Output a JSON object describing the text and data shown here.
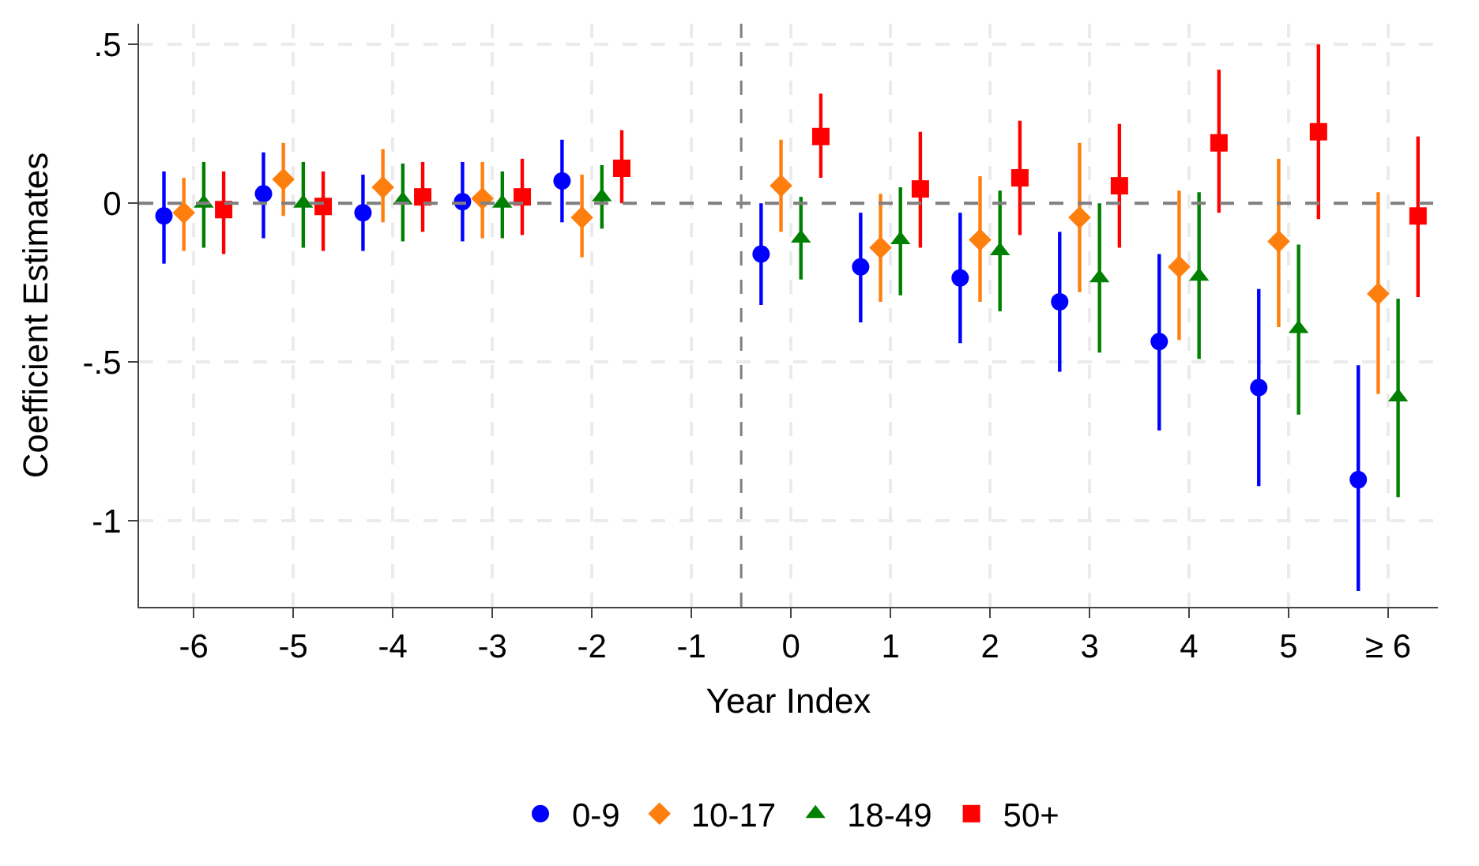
{
  "chart_data": {
    "type": "scatter",
    "xlabel": "Year Index",
    "ylabel": "Coefficient Estimates",
    "xlim": [
      -6.55,
      6.5
    ],
    "ylim": [
      -1.27,
      0.565
    ],
    "xticks": [
      -6,
      -5,
      -4,
      -3,
      -2,
      -1,
      0,
      1,
      2,
      3,
      4,
      5,
      {
        "value": 6,
        "label": "≥ 6"
      }
    ],
    "yticks": [
      {
        "value": 0.5,
        "label": ".5"
      },
      0,
      {
        "value": -0.5,
        "label": "-.5"
      },
      -1
    ],
    "grid": true,
    "legend": "bottom",
    "ref_lines": [
      {
        "axis": "y",
        "value": 0,
        "color": "#808080",
        "line_style": "dashed"
      },
      {
        "axis": "x",
        "value": -0.5,
        "color": "#808080",
        "line_style": "dashed"
      }
    ],
    "series": [
      {
        "name": "0-9",
        "color": "#0000ff",
        "marker": "circle",
        "x": [
          -6.3,
          -5.3,
          -4.3,
          -3.3,
          -2.3,
          -0.3,
          0.7,
          1.7,
          2.7,
          3.7,
          4.7,
          5.7
        ],
        "values": [
          -0.04,
          0.03,
          -0.03,
          0.005,
          0.07,
          -0.16,
          -0.2,
          -0.235,
          -0.31,
          -0.435,
          -0.58,
          -0.87
        ],
        "errors": [
          [
            -0.19,
            0.1
          ],
          [
            -0.11,
            0.16
          ],
          [
            -0.15,
            0.09
          ],
          [
            -0.12,
            0.13
          ],
          [
            -0.06,
            0.2
          ],
          [
            -0.32,
            0.0
          ],
          [
            -0.375,
            -0.03
          ],
          [
            -0.44,
            -0.03
          ],
          [
            -0.53,
            -0.09
          ],
          [
            -0.715,
            -0.16
          ],
          [
            -0.89,
            -0.27
          ],
          [
            -1.22,
            -0.51
          ]
        ]
      },
      {
        "name": "10-17",
        "color": "#ff7f0e",
        "marker": "diamond",
        "x": [
          -6.1,
          -5.1,
          -4.1,
          -3.1,
          -2.1,
          -0.1,
          0.9,
          1.9,
          2.9,
          3.9,
          4.9,
          5.9
        ],
        "values": [
          -0.03,
          0.075,
          0.05,
          0.015,
          -0.045,
          0.055,
          -0.14,
          -0.115,
          -0.045,
          -0.2,
          -0.12,
          -0.285
        ],
        "errors": [
          [
            -0.15,
            0.08
          ],
          [
            -0.04,
            0.19
          ],
          [
            -0.06,
            0.17
          ],
          [
            -0.11,
            0.13
          ],
          [
            -0.17,
            0.09
          ],
          [
            -0.09,
            0.2
          ],
          [
            -0.31,
            0.03
          ],
          [
            -0.31,
            0.085
          ],
          [
            -0.28,
            0.19
          ],
          [
            -0.43,
            0.04
          ],
          [
            -0.39,
            0.14
          ],
          [
            -0.6,
            0.035
          ]
        ]
      },
      {
        "name": "18-49",
        "color": "#008000",
        "marker": "triangle",
        "x": [
          -5.9,
          -4.9,
          -3.9,
          -2.9,
          -1.9,
          0.1,
          1.1,
          2.1,
          3.1,
          4.1,
          5.1,
          6.1
        ],
        "values": [
          0.0,
          0.0,
          0.01,
          0.0,
          0.02,
          -0.11,
          -0.115,
          -0.15,
          -0.235,
          -0.23,
          -0.395,
          -0.61
        ],
        "errors": [
          [
            -0.14,
            0.13
          ],
          [
            -0.14,
            0.13
          ],
          [
            -0.12,
            0.125
          ],
          [
            -0.11,
            0.1
          ],
          [
            -0.08,
            0.12
          ],
          [
            -0.24,
            0.02
          ],
          [
            -0.29,
            0.05
          ],
          [
            -0.34,
            0.04
          ],
          [
            -0.47,
            0.0
          ],
          [
            -0.49,
            0.035
          ],
          [
            -0.665,
            -0.13
          ],
          [
            -0.925,
            -0.3
          ]
        ]
      },
      {
        "name": "50+",
        "color": "#ff0000",
        "marker": "square",
        "x": [
          -5.7,
          -4.7,
          -3.7,
          -2.7,
          -1.7,
          0.3,
          1.3,
          2.3,
          3.3,
          4.3,
          5.3,
          6.3
        ],
        "values": [
          -0.02,
          -0.01,
          0.02,
          0.02,
          0.11,
          0.21,
          0.045,
          0.08,
          0.055,
          0.19,
          0.225,
          -0.04
        ],
        "errors": [
          [
            -0.16,
            0.1
          ],
          [
            -0.15,
            0.1
          ],
          [
            -0.09,
            0.13
          ],
          [
            -0.1,
            0.14
          ],
          [
            0.0,
            0.23
          ],
          [
            0.08,
            0.345
          ],
          [
            -0.14,
            0.225
          ],
          [
            -0.1,
            0.26
          ],
          [
            -0.14,
            0.25
          ],
          [
            -0.03,
            0.42
          ],
          [
            -0.05,
            0.5
          ],
          [
            -0.295,
            0.21
          ]
        ]
      }
    ]
  }
}
